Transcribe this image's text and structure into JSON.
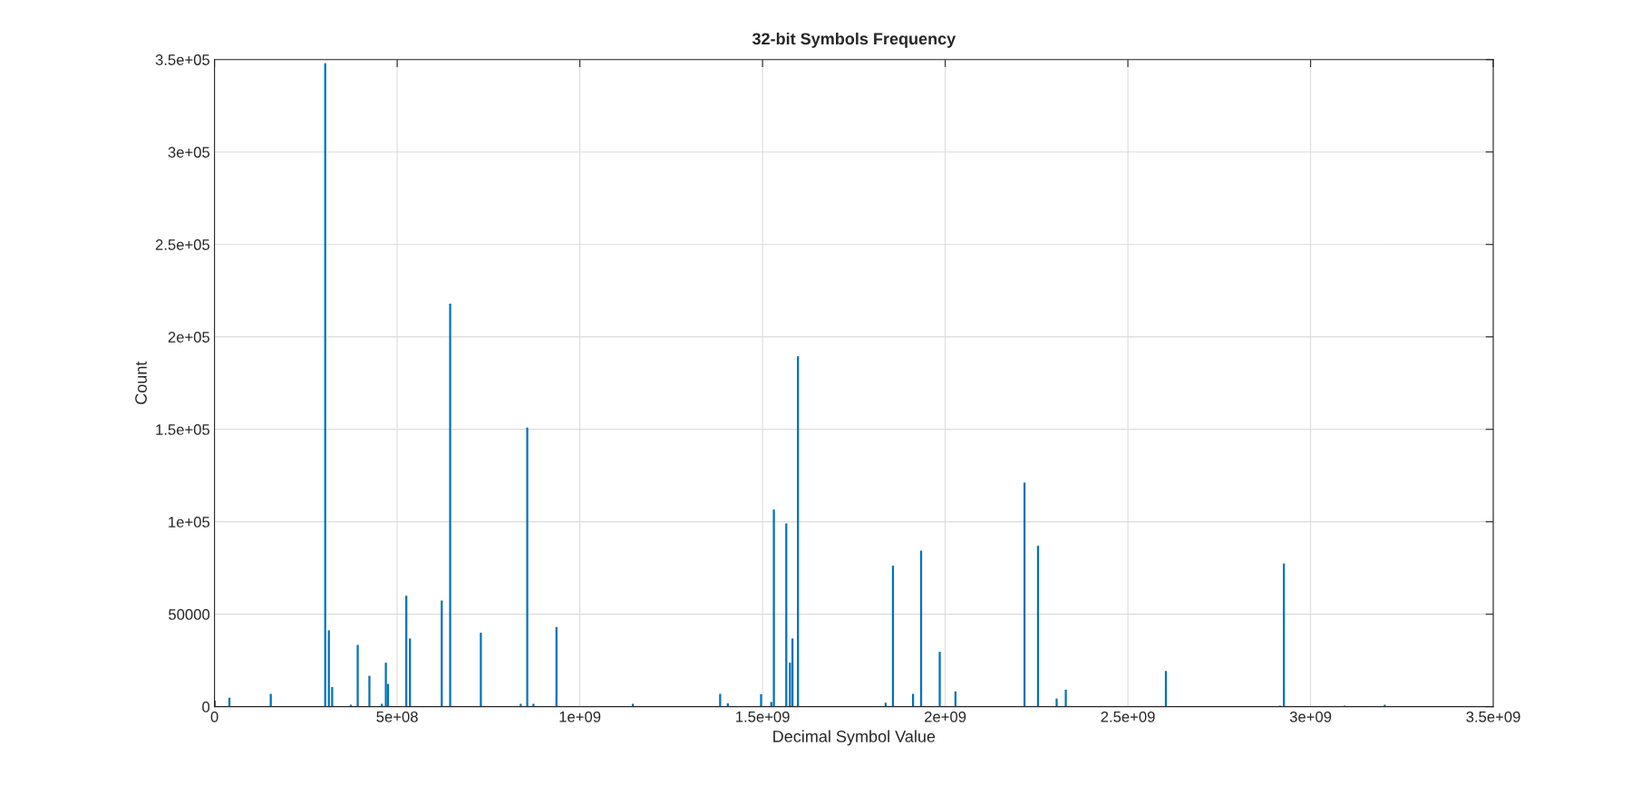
{
  "chart_data": {
    "type": "bar",
    "title": "32-bit Symbols Frequency",
    "xlabel": "Decimal Symbol Value",
    "ylabel": "Count",
    "x": [
      1000000,
      40800000,
      154000000,
      303000000,
      313000000,
      322000000,
      373000000,
      392000000,
      424000000,
      458000000,
      469000000,
      475000000,
      525000000,
      535000000,
      622000000,
      645000000,
      729000000,
      838000000,
      856000000,
      873000000,
      936000000,
      1145000000,
      1384000000,
      1405000000,
      1496000000,
      1524000000,
      1531000000,
      1565000000,
      1575000000,
      1582000000,
      1597000000,
      1837000000,
      1857000000,
      1912000000,
      1934000000,
      1985000000,
      2028000000,
      2217000000,
      2254000000,
      2305000000,
      2330000000,
      2604000000,
      2916000000,
      2927000000,
      3093000000,
      3203000000
    ],
    "values": [
      3300,
      4800,
      6900,
      348000,
      41300,
      10600,
      1100,
      33400,
      16700,
      1500,
      23800,
      12300,
      60000,
      36900,
      57400,
      218000,
      40000,
      1500,
      151000,
      1500,
      43100,
      1600,
      6900,
      1800,
      6700,
      2500,
      106600,
      99100,
      23800,
      36900,
      189500,
      2100,
      76200,
      6900,
      84400,
      29700,
      8200,
      121200,
      87000,
      4300,
      9200,
      19300,
      600,
      77400,
      600,
      1100
    ],
    "color": "#0072bd",
    "xlim": [
      0,
      3500000000
    ],
    "xticks": [
      0,
      {
        "value": 500000000,
        "label": "5e+08"
      },
      {
        "value": 1000000000,
        "label": "1e+09"
      },
      {
        "value": 1500000000,
        "label": "1.5e+09"
      },
      {
        "value": 2000000000,
        "label": "2e+09"
      },
      {
        "value": 2500000000,
        "label": "2.5e+09"
      },
      {
        "value": 3000000000,
        "label": "3e+09"
      },
      {
        "value": 3500000000,
        "label": "3.5e+09"
      }
    ],
    "ylim": [
      0,
      350000
    ],
    "yticks": [
      0,
      50000,
      {
        "value": 100000,
        "label": "1e+05"
      },
      {
        "value": 150000,
        "label": "1.5e+05"
      },
      {
        "value": 200000,
        "label": "2e+05"
      },
      {
        "value": 250000,
        "label": "2.5e+05"
      },
      {
        "value": 300000,
        "label": "3e+05"
      },
      {
        "value": 350000,
        "label": "3.5e+05"
      }
    ],
    "grid": true
  }
}
